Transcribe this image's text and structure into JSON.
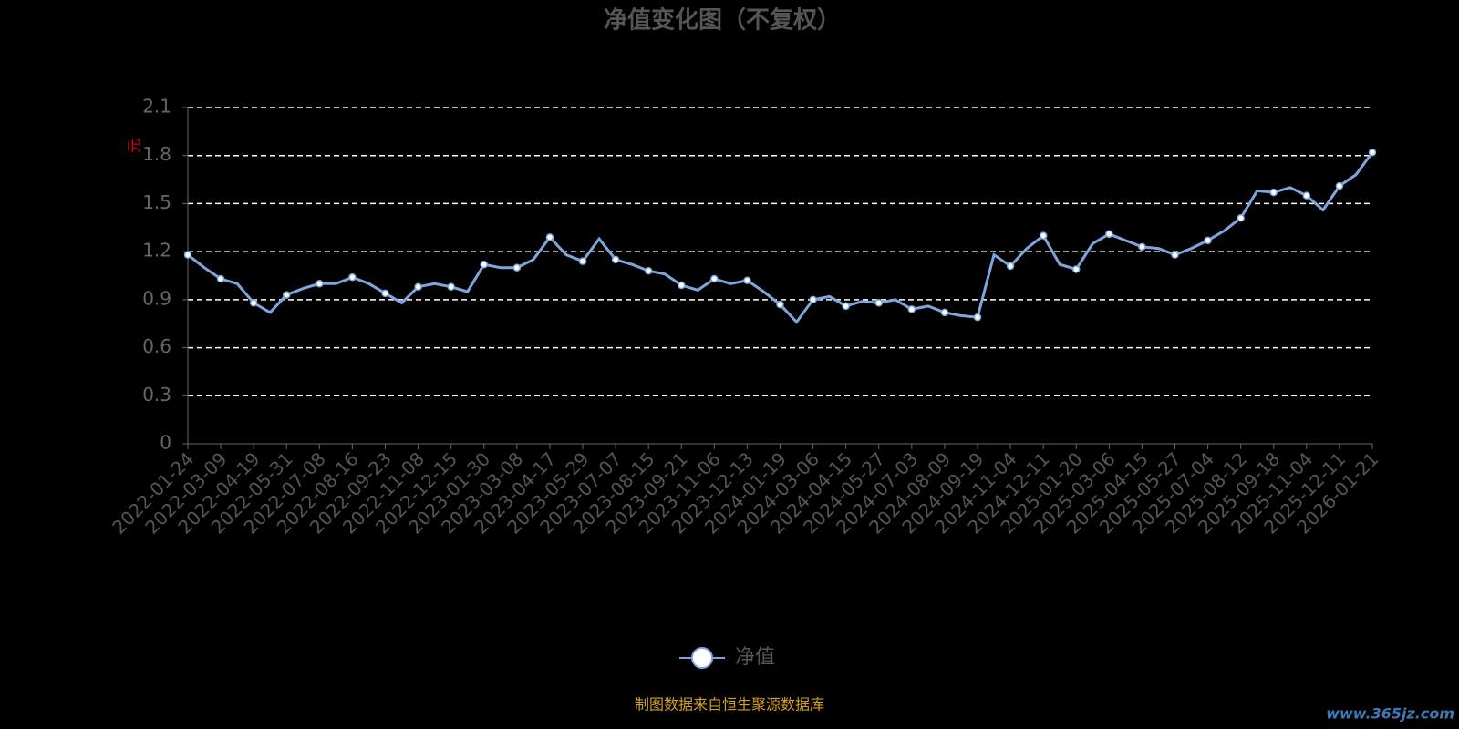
{
  "chart_data": {
    "type": "line",
    "title": "净值变化图（不复权）",
    "y_label": "元",
    "categories": [
      "2022-01-24",
      null,
      "2022-03-09",
      null,
      "2022-04-19",
      null,
      "2022-05-31",
      null,
      "2022-07-08",
      null,
      "2022-08-16",
      null,
      "2022-09-23",
      null,
      "2022-11-08",
      null,
      "2022-12-15",
      null,
      "2023-01-30",
      null,
      "2023-03-08",
      null,
      "2023-04-17",
      null,
      "2023-05-29",
      null,
      "2023-07-07",
      null,
      "2023-08-15",
      null,
      "2023-09-21",
      null,
      "2023-11-06",
      null,
      "2023-12-13",
      null,
      "2024-01-19",
      null,
      "2024-03-06",
      null,
      "2024-04-15",
      null,
      "2024-05-27",
      null,
      "2024-07-03",
      null,
      "2024-08-09",
      null,
      "2024-09-19",
      null,
      "2024-11-04",
      null,
      "2024-12-11",
      null,
      "2025-01-20",
      null,
      "2025-03-06",
      null,
      "2025-04-15",
      null,
      "2025-05-27",
      null,
      "2025-07-04",
      null,
      "2025-08-12",
      null,
      "2025-09-18",
      null,
      "2025-11-04",
      null,
      "2025-12-11",
      null,
      "2026-01-21"
    ],
    "series": [
      {
        "name": "净值",
        "color": "#7fa6dc",
        "values": [
          1.18,
          1.1,
          1.03,
          1.0,
          0.88,
          0.82,
          0.93,
          0.97,
          1.0,
          1.0,
          1.04,
          1.0,
          0.94,
          0.88,
          0.98,
          1.0,
          0.98,
          0.95,
          1.12,
          1.1,
          1.1,
          1.15,
          1.29,
          1.18,
          1.14,
          1.28,
          1.15,
          1.12,
          1.08,
          1.06,
          0.99,
          0.96,
          1.03,
          1.0,
          1.02,
          0.95,
          0.87,
          0.76,
          0.9,
          0.92,
          0.86,
          0.89,
          0.88,
          0.9,
          0.84,
          0.86,
          0.82,
          0.8,
          0.79,
          1.18,
          1.11,
          1.22,
          1.3,
          1.12,
          1.09,
          1.25,
          1.31,
          1.27,
          1.23,
          1.22,
          1.18,
          1.22,
          1.27,
          1.33,
          1.41,
          1.58,
          1.57,
          1.6,
          1.55,
          1.46,
          1.61,
          1.68,
          1.82
        ]
      }
    ],
    "ylim": [
      0,
      2.1
    ],
    "yticks": [
      0,
      0.3,
      0.6,
      0.9,
      1.2,
      1.5,
      1.8,
      2.1
    ],
    "grid": true,
    "source": "制图数据来自恒生聚源数据库",
    "watermark": "www.365jz.com"
  }
}
